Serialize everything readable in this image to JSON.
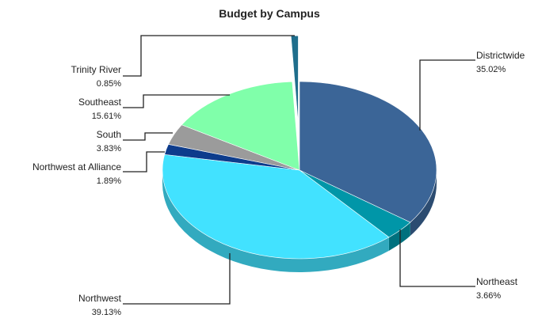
{
  "chart_data": {
    "type": "pie",
    "title": "Budget by Campus",
    "categories": [
      "Districtwide",
      "Northeast",
      "Northwest",
      "Northwest at Alliance",
      "South",
      "Southeast",
      "Trinity River"
    ],
    "values": [
      35.02,
      3.66,
      39.13,
      1.89,
      3.83,
      15.61,
      0.85
    ],
    "value_labels": [
      "35.02%",
      "3.66%",
      "39.13%",
      "1.89%",
      "3.83%",
      "15.61%",
      "0.85%"
    ],
    "colors": [
      "#3b6597",
      "#0096a8",
      "#42e2ff",
      "#0d3c8c",
      "#9b9b9b",
      "#80ffaa",
      "#1f6e8c"
    ]
  }
}
